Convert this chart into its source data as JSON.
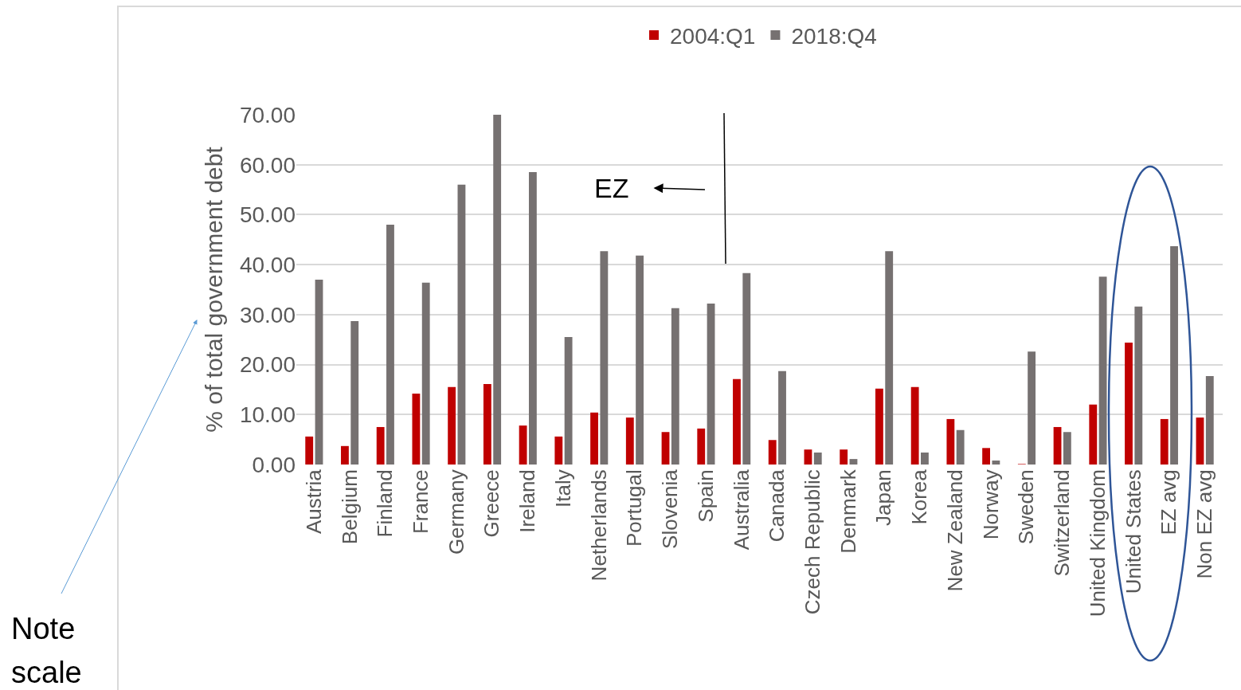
{
  "chart_data": {
    "type": "bar",
    "categories": [
      "Austria",
      "Belgium",
      "Finland",
      "France",
      "Germany",
      "Greece",
      "Ireland",
      "Italy",
      "Netherlands",
      "Portugal",
      "Slovenia",
      "Spain",
      "Australia",
      "Canada",
      "Czech Republic",
      "Denmark",
      "Japan",
      "Korea",
      "New Zealand",
      "Norway",
      "Sweden",
      "Switzerland",
      "United Kingdom",
      "United States",
      "EZ avg",
      "Non EZ avg"
    ],
    "series": [
      {
        "name": "2004:Q1",
        "color": "#c00000",
        "values": [
          5.6,
          3.7,
          7.5,
          14.2,
          15.5,
          16.1,
          7.8,
          5.6,
          10.4,
          9.4,
          6.5,
          7.2,
          17.1,
          4.9,
          3.0,
          3.0,
          15.2,
          15.5,
          9.1,
          3.3,
          0.1,
          7.5,
          12.0,
          24.4,
          9.1,
          9.4
        ]
      },
      {
        "name": "2018:Q4",
        "color": "#767171",
        "values": [
          37.0,
          28.7,
          48.0,
          36.4,
          56.0,
          70,
          58.5,
          25.5,
          42.7,
          41.8,
          31.3,
          32.2,
          38.3,
          18.7,
          2.4,
          1.1,
          42.7,
          2.4,
          6.9,
          0.8,
          22.6,
          6.5,
          37.6,
          31.6,
          43.7,
          17.7
        ]
      }
    ],
    "ylabel": "% of total government debt",
    "ylim": [
      0,
      70
    ],
    "yticks": [
      {
        "value": 0,
        "label": "0.00"
      },
      {
        "value": 10,
        "label": "10.00"
      },
      {
        "value": 20,
        "label": "20.00"
      },
      {
        "value": 30,
        "label": "30.00"
      },
      {
        "value": 40,
        "label": "40.00"
      },
      {
        "value": 50,
        "label": "50.00"
      },
      {
        "value": 60,
        "label": "60.00"
      },
      {
        "value": 70,
        "label": "70.00"
      }
    ],
    "grid": "y",
    "legend": "top",
    "annotations": [
      "EZ",
      "Note scale"
    ]
  }
}
